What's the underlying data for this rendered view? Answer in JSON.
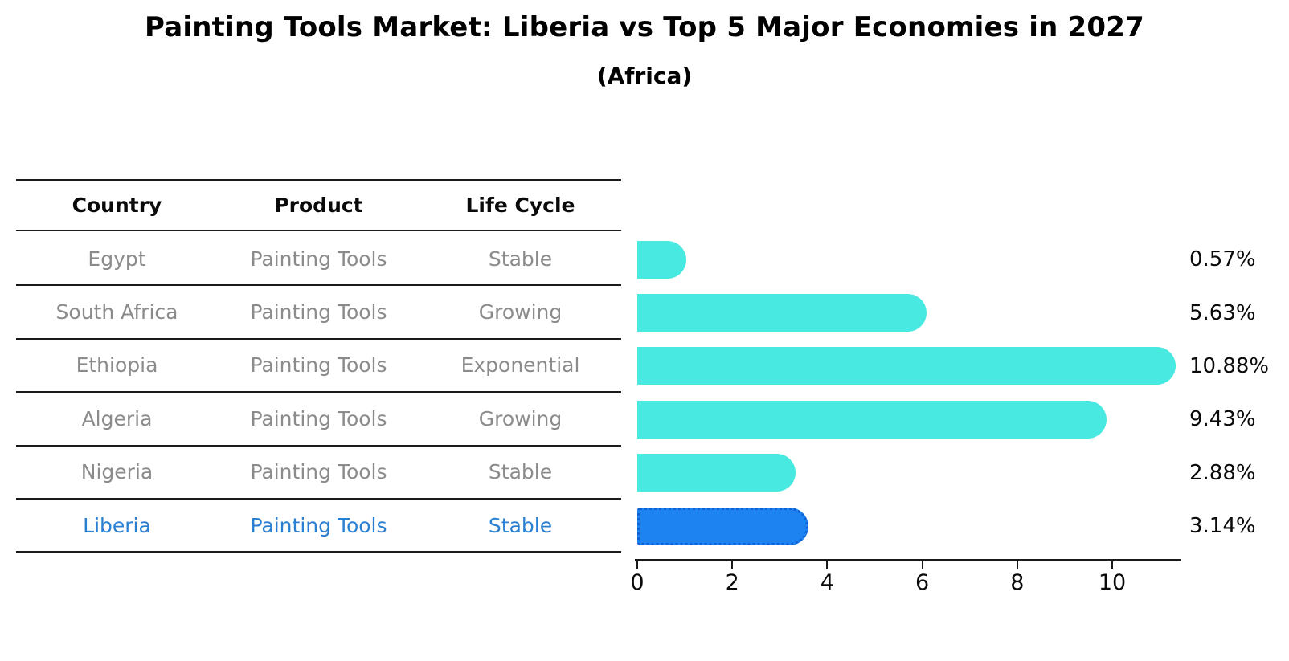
{
  "header": {
    "title": "Painting Tools Market: Liberia vs Top 5 Major Economies in 2027",
    "subtitle": "(Africa)"
  },
  "table": {
    "columns": [
      "Country",
      "Product",
      "Life Cycle"
    ],
    "rows": [
      {
        "country": "Egypt",
        "product": "Painting Tools",
        "life_cycle": "Stable",
        "highlight": false
      },
      {
        "country": "South Africa",
        "product": "Painting Tools",
        "life_cycle": "Growing",
        "highlight": false
      },
      {
        "country": "Ethiopia",
        "product": "Painting Tools",
        "life_cycle": "Exponential",
        "highlight": false
      },
      {
        "country": "Algeria",
        "product": "Painting Tools",
        "life_cycle": "Growing",
        "highlight": false
      },
      {
        "country": "Nigeria",
        "product": "Painting Tools",
        "life_cycle": "Stable",
        "highlight": false
      },
      {
        "country": "Liberia",
        "product": "Painting Tools",
        "life_cycle": "Stable",
        "highlight": true
      }
    ]
  },
  "chart_data": {
    "type": "bar",
    "orientation": "horizontal",
    "title": "Painting Tools Market: Liberia vs Top 5 Major Economies in 2027",
    "subtitle": "(Africa)",
    "categories": [
      "Egypt",
      "South Africa",
      "Ethiopia",
      "Algeria",
      "Nigeria",
      "Liberia"
    ],
    "values": [
      0.57,
      5.63,
      10.88,
      9.43,
      2.88,
      3.14
    ],
    "value_labels": [
      "0.57%",
      "5.63%",
      "10.88%",
      "9.43%",
      "2.88%",
      "3.14%"
    ],
    "xlim": [
      0,
      11.45
    ],
    "x_ticks": [
      0,
      2,
      4,
      6,
      8,
      10
    ],
    "x_tick_labels": [
      "0",
      "2",
      "4",
      "6",
      "8",
      "10"
    ],
    "grid": false,
    "legend": false,
    "highlight_category": "Liberia",
    "bar_color": "#48e9e1",
    "highlight_bar_color": "#1d83f0",
    "highlight_text_color": "#2b7fd0"
  }
}
